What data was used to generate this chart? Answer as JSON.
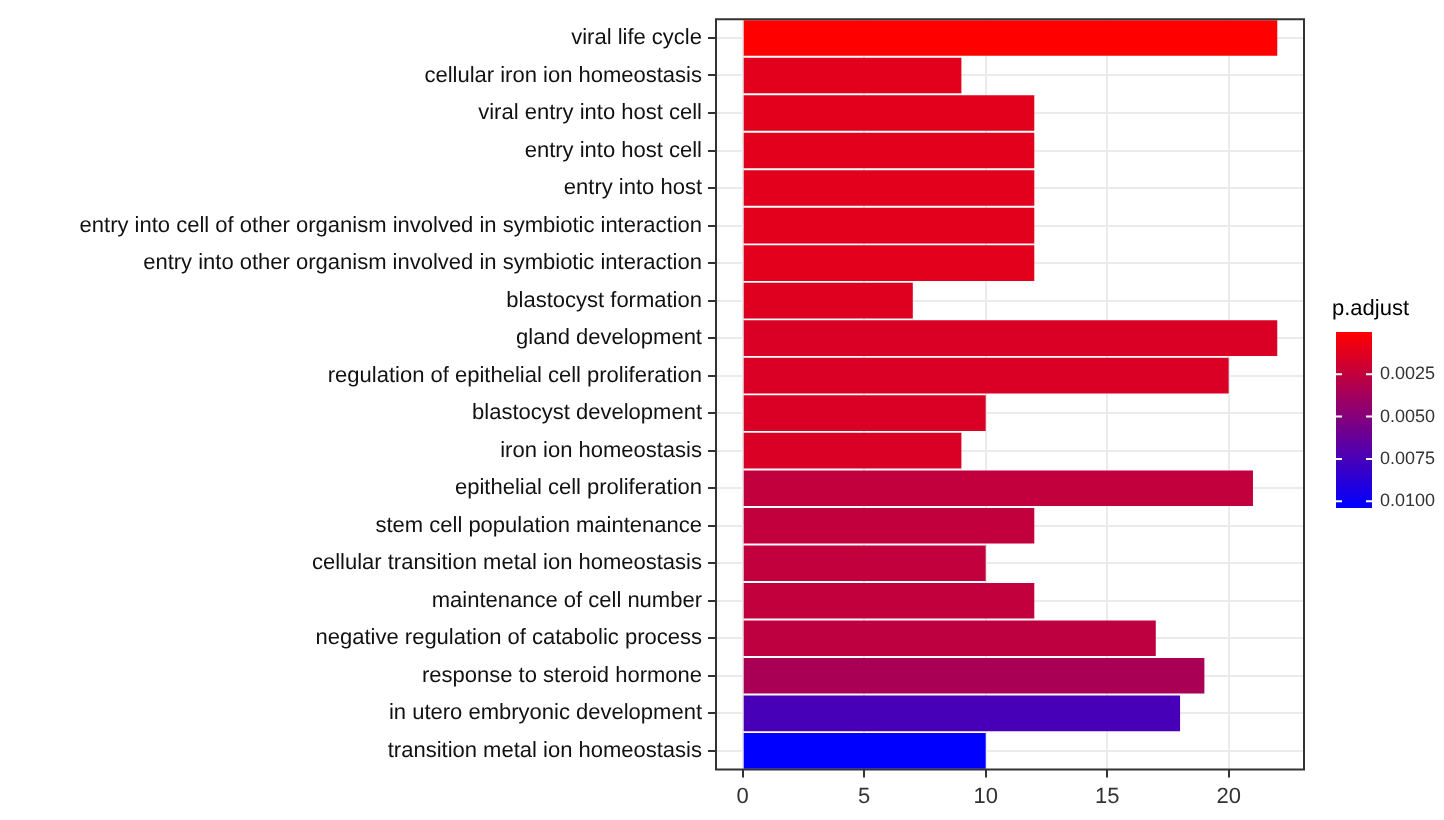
{
  "chart_data": {
    "type": "bar",
    "orientation": "horizontal",
    "categories": [
      "viral life cycle",
      "cellular iron ion homeostasis",
      "viral entry into host cell",
      "entry into host cell",
      "entry into host",
      "entry into cell of other organism involved in symbiotic interaction",
      "entry into other organism involved in symbiotic interaction",
      "blastocyst formation",
      "gland development",
      "regulation of epithelial cell proliferation",
      "blastocyst development",
      "iron ion homeostasis",
      "epithelial cell proliferation",
      "stem cell population maintenance",
      "cellular transition metal ion homeostasis",
      "maintenance of cell number",
      "negative regulation of catabolic process",
      "response to steroid hormone",
      "in utero embryonic development",
      "transition metal ion homeostasis"
    ],
    "values": [
      22,
      9,
      12,
      12,
      12,
      12,
      12,
      7,
      22,
      20,
      10,
      9,
      21,
      12,
      10,
      12,
      17,
      19,
      18,
      10
    ],
    "cvalues": [
      0,
      0.0012,
      0.0012,
      0.0012,
      0.0012,
      0.0012,
      0.0012,
      0.0013,
      0.0015,
      0.0015,
      0.0015,
      0.0015,
      0.0025,
      0.0025,
      0.0025,
      0.0025,
      0.0026,
      0.0035,
      0.0075,
      0.0104
    ],
    "clabel": "p.adjust",
    "clim": [
      0,
      0.0104
    ],
    "cticks": [
      0.0025,
      {
        "value": 0.005,
        "label": "0.0050"
      },
      0.0075,
      {
        "value": 0.01,
        "label": "0.0100"
      }
    ],
    "xlim": [
      -1.1,
      23.1
    ],
    "xticks": [
      0,
      5,
      10,
      15,
      20
    ],
    "grid": true
  }
}
